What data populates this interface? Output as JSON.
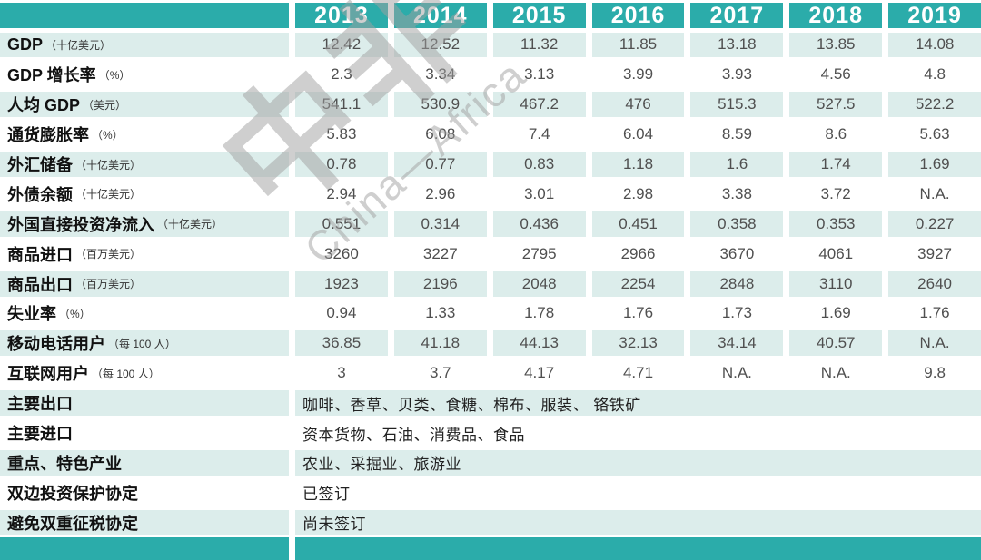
{
  "chart_data": {
    "type": "table",
    "title": "",
    "years": [
      "2013",
      "2014",
      "2015",
      "2016",
      "2017",
      "2018",
      "2019"
    ],
    "indicator_rows": [
      {
        "label": "GDP",
        "unit": "（十亿美元）",
        "values": [
          "12.42",
          "12.52",
          "11.32",
          "11.85",
          "13.18",
          "13.85",
          "14.08"
        ]
      },
      {
        "label": "GDP 增长率",
        "unit": "（%）",
        "values": [
          "2.3",
          "3.34",
          "3.13",
          "3.99",
          "3.93",
          "4.56",
          "4.8"
        ]
      },
      {
        "label": "人均 GDP",
        "unit": "（美元）",
        "values": [
          "541.1",
          "530.9",
          "467.2",
          "476",
          "515.3",
          "527.5",
          "522.2"
        ]
      },
      {
        "label": "通货膨胀率",
        "unit": "（%）",
        "values": [
          "5.83",
          "6.08",
          "7.4",
          "6.04",
          "8.59",
          "8.6",
          "5.63"
        ]
      },
      {
        "label": "外汇储备",
        "unit": "（十亿美元）",
        "values": [
          "0.78",
          "0.77",
          "0.83",
          "1.18",
          "1.6",
          "1.74",
          "1.69"
        ]
      },
      {
        "label": "外债余额",
        "unit": "（十亿美元）",
        "values": [
          "2.94",
          "2.96",
          "3.01",
          "2.98",
          "3.38",
          "3.72",
          "N.A."
        ]
      },
      {
        "label": "外国直接投资净流入",
        "unit": "（十亿美元）",
        "values": [
          "0.551",
          "0.314",
          "0.436",
          "0.451",
          "0.358",
          "0.353",
          "0.227"
        ]
      },
      {
        "label": "商品进口",
        "unit": "（百万美元）",
        "values": [
          "3260",
          "3227",
          "2795",
          "2966",
          "3670",
          "4061",
          "3927"
        ]
      },
      {
        "label": "商品出口",
        "unit": "（百万美元）",
        "values": [
          "1923",
          "2196",
          "2048",
          "2254",
          "2848",
          "3110",
          "2640"
        ]
      },
      {
        "label": "失业率",
        "unit": "（%）",
        "values": [
          "0.94",
          "1.33",
          "1.78",
          "1.76",
          "1.73",
          "1.69",
          "1.76"
        ]
      },
      {
        "label": "移动电话用户",
        "unit": "（每 100 人）",
        "values": [
          "36.85",
          "41.18",
          "44.13",
          "32.13",
          "34.14",
          "40.57",
          "N.A."
        ]
      },
      {
        "label": "互联网用户",
        "unit": "（每 100 人）",
        "values": [
          "3",
          "3.7",
          "4.17",
          "4.71",
          "N.A.",
          "N.A.",
          "9.8"
        ]
      }
    ],
    "info_rows": [
      {
        "label": "主要出口",
        "value": "咖啡、香草、贝类、食糖、棉布、服装、 铬铁矿"
      },
      {
        "label": "主要进口",
        "value": "资本货物、石油、消费品、食品"
      },
      {
        "label": "重点、特色产业",
        "value": "农业、采掘业、旅游业"
      },
      {
        "label": "双边投资保护协定",
        "value": "已签订"
      },
      {
        "label": "避免双重征税协定",
        "value": "尚未签订"
      }
    ]
  },
  "watermark": {
    "cn": "中非",
    "en": "China—Africa"
  },
  "colors": {
    "teal": "#2bacaa",
    "stripe": "#dcedeb"
  }
}
